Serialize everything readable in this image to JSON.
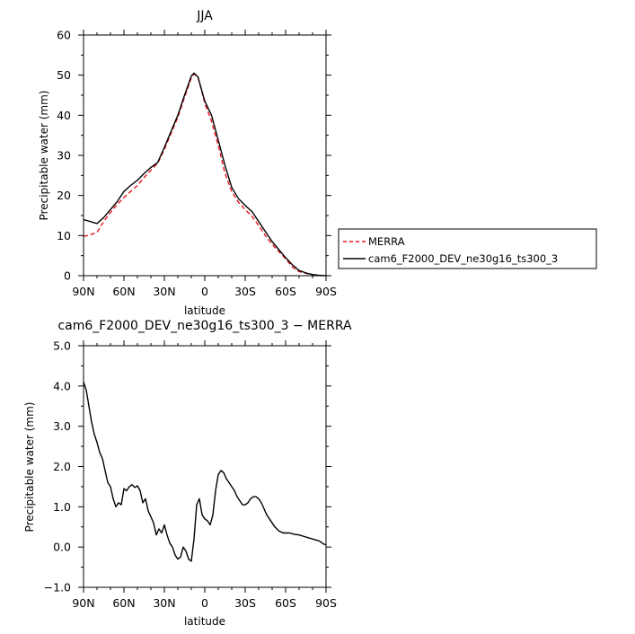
{
  "chart_data": [
    {
      "type": "line",
      "title": "JJA",
      "xlabel": "latitude",
      "ylabel": "Precipitable water (mm)",
      "xlim": [
        90,
        -90
      ],
      "ylim": [
        0,
        60
      ],
      "x_ticks": [
        90,
        60,
        30,
        0,
        -30,
        -60,
        -90
      ],
      "x_tick_labels": [
        "90N",
        "60N",
        "30N",
        "0",
        "30S",
        "60S",
        "90S"
      ],
      "y_ticks": [
        0,
        10,
        20,
        30,
        40,
        50,
        60
      ],
      "y_tick_labels": [
        "0",
        "10",
        "20",
        "30",
        "40",
        "50",
        "60"
      ],
      "legend_position": "right",
      "series": [
        {
          "name": "MERRA",
          "color": "#e8131c",
          "dash": "dashed",
          "x": [
            90,
            85,
            80,
            75,
            70,
            65,
            60,
            55,
            50,
            45,
            40,
            35,
            30,
            25,
            20,
            15,
            10,
            8,
            5,
            0,
            -5,
            -10,
            -15,
            -20,
            -25,
            -30,
            -35,
            -40,
            -45,
            -50,
            -55,
            -60,
            -65,
            -70,
            -75,
            -80,
            -85,
            -90
          ],
          "y": [
            9.8,
            10.2,
            10.8,
            13.5,
            15.8,
            17.8,
            19.5,
            21,
            22.5,
            24.5,
            26.3,
            28,
            31.5,
            35.5,
            39.5,
            44.5,
            49.3,
            50.3,
            49.5,
            43,
            38.5,
            32.5,
            25.5,
            21,
            18.3,
            16.5,
            14.8,
            12.5,
            10,
            7.8,
            6,
            4.2,
            2.2,
            1,
            0.6,
            0.2,
            0.05,
            0
          ]
        },
        {
          "name": "cam6_F2000_DEV_ne30g16_ts300_3",
          "color": "#000000",
          "dash": "solid",
          "x": [
            90,
            85,
            80,
            75,
            70,
            65,
            60,
            55,
            50,
            45,
            40,
            35,
            30,
            25,
            20,
            15,
            10,
            8,
            5,
            0,
            -5,
            -10,
            -15,
            -20,
            -25,
            -30,
            -35,
            -40,
            -45,
            -50,
            -55,
            -60,
            -65,
            -70,
            -75,
            -80,
            -85,
            -90
          ],
          "y": [
            14,
            13.5,
            13,
            14.5,
            16.5,
            18.5,
            21,
            22.5,
            23.8,
            25.5,
            27,
            28.2,
            32,
            36,
            40,
            45,
            49.8,
            50.5,
            49.5,
            43.5,
            40,
            33.8,
            27.5,
            22,
            19.2,
            17.5,
            16,
            13.5,
            11,
            8.5,
            6.5,
            4.5,
            2.7,
            1.3,
            0.7,
            0.3,
            0.1,
            0
          ]
        }
      ]
    },
    {
      "type": "line",
      "title": "cam6_F2000_DEV_ne30g16_ts300_3 − MERRA",
      "xlabel": "latitude",
      "ylabel": "Precipitable water (mm)",
      "xlim": [
        90,
        -90
      ],
      "ylim": [
        -1,
        5
      ],
      "x_ticks": [
        90,
        60,
        30,
        0,
        -30,
        -60,
        -90
      ],
      "x_tick_labels": [
        "90N",
        "60N",
        "30N",
        "0",
        "30S",
        "60S",
        "90S"
      ],
      "y_ticks": [
        -1,
        0,
        1,
        2,
        3,
        4,
        5
      ],
      "y_tick_labels": [
        "−1.0",
        "0.0",
        "1.0",
        "2.0",
        "3.0",
        "4.0",
        "5.0"
      ],
      "series": [
        {
          "name": "",
          "color": "#000000",
          "dash": "solid",
          "x": [
            90,
            88,
            86,
            84,
            82,
            80,
            78,
            76,
            74,
            72,
            70,
            68,
            66,
            64,
            62,
            60,
            58,
            56,
            54,
            52,
            50,
            48,
            46,
            44,
            42,
            40,
            38,
            36,
            34,
            32,
            30,
            28,
            26,
            24,
            22,
            20,
            18,
            16,
            14,
            12,
            10,
            8,
            6,
            4,
            2,
            0,
            -2,
            -4,
            -6,
            -8,
            -10,
            -12,
            -14,
            -16,
            -18,
            -20,
            -22,
            -24,
            -26,
            -28,
            -30,
            -32,
            -34,
            -36,
            -38,
            -40,
            -42,
            -44,
            -46,
            -48,
            -50,
            -52,
            -55,
            -58,
            -60,
            -63,
            -66,
            -70,
            -75,
            -80,
            -85,
            -88,
            -90
          ],
          "y": [
            4.1,
            3.9,
            3.5,
            3.1,
            2.8,
            2.6,
            2.35,
            2.2,
            1.9,
            1.6,
            1.5,
            1.2,
            1.0,
            1.1,
            1.05,
            1.45,
            1.4,
            1.5,
            1.55,
            1.48,
            1.52,
            1.4,
            1.1,
            1.2,
            0.9,
            0.75,
            0.6,
            0.3,
            0.45,
            0.35,
            0.55,
            0.3,
            0.1,
            0.0,
            -0.2,
            -0.3,
            -0.25,
            0.0,
            -0.1,
            -0.3,
            -0.35,
            0.2,
            1.05,
            1.2,
            0.8,
            0.7,
            0.65,
            0.55,
            0.8,
            1.4,
            1.8,
            1.9,
            1.85,
            1.7,
            1.6,
            1.5,
            1.4,
            1.25,
            1.15,
            1.05,
            1.05,
            1.1,
            1.2,
            1.25,
            1.25,
            1.2,
            1.1,
            0.95,
            0.8,
            0.7,
            0.6,
            0.5,
            0.4,
            0.35,
            0.35,
            0.35,
            0.32,
            0.3,
            0.25,
            0.2,
            0.15,
            0.08,
            0.05
          ]
        }
      ]
    }
  ]
}
